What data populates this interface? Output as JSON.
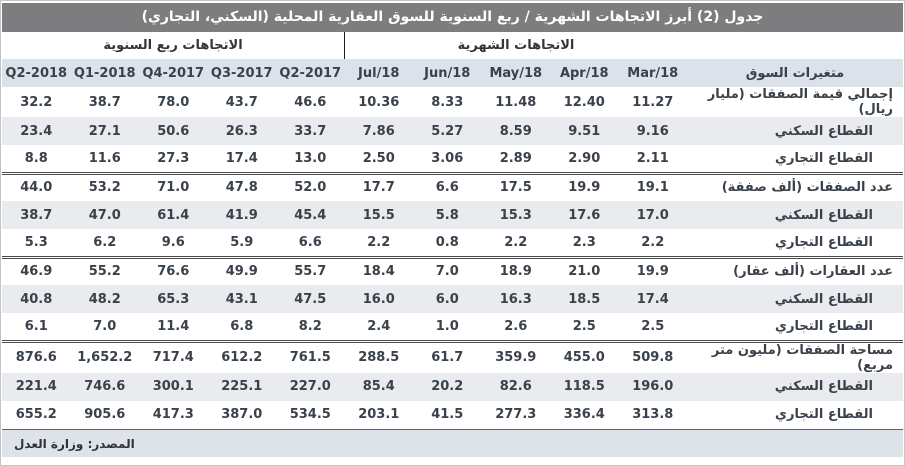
{
  "page": {
    "title": "جدول (2) أبرز الاتجاهات الشهرية / ربع السنوية للسوق العقارية المحلية (السكني، التجاري)",
    "source": "المصدر: وزارة العدل"
  },
  "colors": {
    "title_bar_bg": "#7d7d7f",
    "title_text": "#ffffff",
    "header_row_bg": "#dbe2e9",
    "shaded_row_bg": "#e9ebee",
    "footer_bg": "#dde3e8",
    "text": "#39414b",
    "section_border": "#4a4a4a",
    "group_divider": "#1f1f1f"
  },
  "table": {
    "group_headers": {
      "monthly": "الاتجاهات الشهرية",
      "quarterly": "الاتجاهات ربع السنوية"
    },
    "label_column_header": "متغيرات السوق",
    "monthly_columns": [
      "Mar/18",
      "Apr/18",
      "May/18",
      "Jun/18",
      "Jul/18"
    ],
    "quarterly_columns": [
      "2017-Q2",
      "2017-Q3",
      "2017-Q4",
      "2018-Q1",
      "2018-Q2"
    ],
    "sections": [
      {
        "rows": [
          {
            "label": "إجمالي قيمة الصفقات (مليار ريال)",
            "indent": false,
            "shaded": false,
            "monthly": [
              "11.27",
              "12.40",
              "11.48",
              "8.33",
              "10.36"
            ],
            "quarterly": [
              "46.6",
              "43.7",
              "78.0",
              "38.7",
              "32.2"
            ]
          },
          {
            "label": "القطاع السكني",
            "indent": true,
            "shaded": true,
            "monthly": [
              "9.16",
              "9.51",
              "8.59",
              "5.27",
              "7.86"
            ],
            "quarterly": [
              "33.7",
              "26.3",
              "50.6",
              "27.1",
              "23.4"
            ]
          },
          {
            "label": "القطاع التجاري",
            "indent": true,
            "shaded": false,
            "monthly": [
              "2.11",
              "2.90",
              "2.89",
              "3.06",
              "2.50"
            ],
            "quarterly": [
              "13.0",
              "17.4",
              "27.3",
              "11.6",
              "8.8"
            ]
          }
        ]
      },
      {
        "rows": [
          {
            "label": "عدد الصفقات (ألف صفقة)",
            "indent": false,
            "shaded": false,
            "monthly": [
              "19.1",
              "19.9",
              "17.5",
              "6.6",
              "17.7"
            ],
            "quarterly": [
              "52.0",
              "47.8",
              "71.0",
              "53.2",
              "44.0"
            ]
          },
          {
            "label": "القطاع السكني",
            "indent": true,
            "shaded": true,
            "monthly": [
              "17.0",
              "17.6",
              "15.3",
              "5.8",
              "15.5"
            ],
            "quarterly": [
              "45.4",
              "41.9",
              "61.4",
              "47.0",
              "38.7"
            ]
          },
          {
            "label": "القطاع التجاري",
            "indent": true,
            "shaded": false,
            "monthly": [
              "2.2",
              "2.3",
              "2.2",
              "0.8",
              "2.2"
            ],
            "quarterly": [
              "6.6",
              "5.9",
              "9.6",
              "6.2",
              "5.3"
            ]
          }
        ]
      },
      {
        "rows": [
          {
            "label": "عدد العقارات (ألف عقار)",
            "indent": false,
            "shaded": false,
            "monthly": [
              "19.9",
              "21.0",
              "18.9",
              "7.0",
              "18.4"
            ],
            "quarterly": [
              "55.7",
              "49.9",
              "76.6",
              "55.2",
              "46.9"
            ]
          },
          {
            "label": "القطاع السكني",
            "indent": true,
            "shaded": true,
            "monthly": [
              "17.4",
              "18.5",
              "16.3",
              "6.0",
              "16.0"
            ],
            "quarterly": [
              "47.5",
              "43.1",
              "65.3",
              "48.2",
              "40.8"
            ]
          },
          {
            "label": "القطاع التجاري",
            "indent": true,
            "shaded": false,
            "monthly": [
              "2.5",
              "2.5",
              "2.6",
              "1.0",
              "2.4"
            ],
            "quarterly": [
              "8.2",
              "6.8",
              "11.4",
              "7.0",
              "6.1"
            ]
          }
        ]
      },
      {
        "rows": [
          {
            "label": "مساحة الصفقات (مليون متر مربع)",
            "indent": false,
            "shaded": false,
            "monthly": [
              "509.8",
              "455.0",
              "359.9",
              "61.7",
              "288.5"
            ],
            "quarterly": [
              "761.5",
              "612.2",
              "717.4",
              "1,652.2",
              "876.6"
            ]
          },
          {
            "label": "القطاع السكني",
            "indent": true,
            "shaded": true,
            "monthly": [
              "196.0",
              "118.5",
              "82.6",
              "20.2",
              "85.4"
            ],
            "quarterly": [
              "227.0",
              "225.1",
              "300.1",
              "746.6",
              "221.4"
            ]
          },
          {
            "label": "القطاع التجاري",
            "indent": true,
            "shaded": false,
            "monthly": [
              "313.8",
              "336.4",
              "277.3",
              "41.5",
              "203.1"
            ],
            "quarterly": [
              "534.5",
              "387.0",
              "417.3",
              "905.6",
              "655.2"
            ]
          }
        ]
      }
    ]
  }
}
